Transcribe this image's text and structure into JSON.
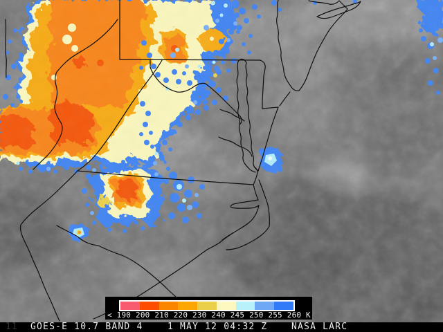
{
  "product_bar": {
    "corner_mark": "11",
    "product": "GOES-E 10.7 BAND 4",
    "datetime": "1 MAY 12 04:32 Z",
    "credit": "NASA LARC"
  },
  "colorbar": {
    "unit": "K",
    "tick_labels": [
      "< 190",
      "200",
      "210",
      "220",
      "230",
      "240",
      "245",
      "250",
      "255",
      "260 K"
    ],
    "segments": [
      {
        "range_k": "< 190-200",
        "color": "#f85b70"
      },
      {
        "range_k": "200-210",
        "color": "#fd4d00"
      },
      {
        "range_k": "210-220",
        "color": "#fc8500"
      },
      {
        "range_k": "220-230",
        "color": "#fda600"
      },
      {
        "range_k": "230-240",
        "color": "#e9cf4a"
      },
      {
        "range_k": "240-245",
        "color": "#fdf8c0"
      },
      {
        "range_k": "245-250",
        "color": "#b9f1fb"
      },
      {
        "range_k": "250-255",
        "color": "#6fa9f6"
      },
      {
        "range_k": "255-260",
        "color": "#2f7bf8"
      }
    ]
  },
  "palette": {
    "deep_orange": "#f4590a",
    "orange": "#f8861a",
    "amber": "#f7ab17",
    "yellow": "#ead14e",
    "pale_yellow": "#faf6bd",
    "cyan": "#b4ecf8",
    "light_blue": "#7ab0f6",
    "blue": "#4385f2",
    "boundary_line": "#0f0f0f",
    "strip_bg": "#000000",
    "strip_text": "#ececec"
  }
}
